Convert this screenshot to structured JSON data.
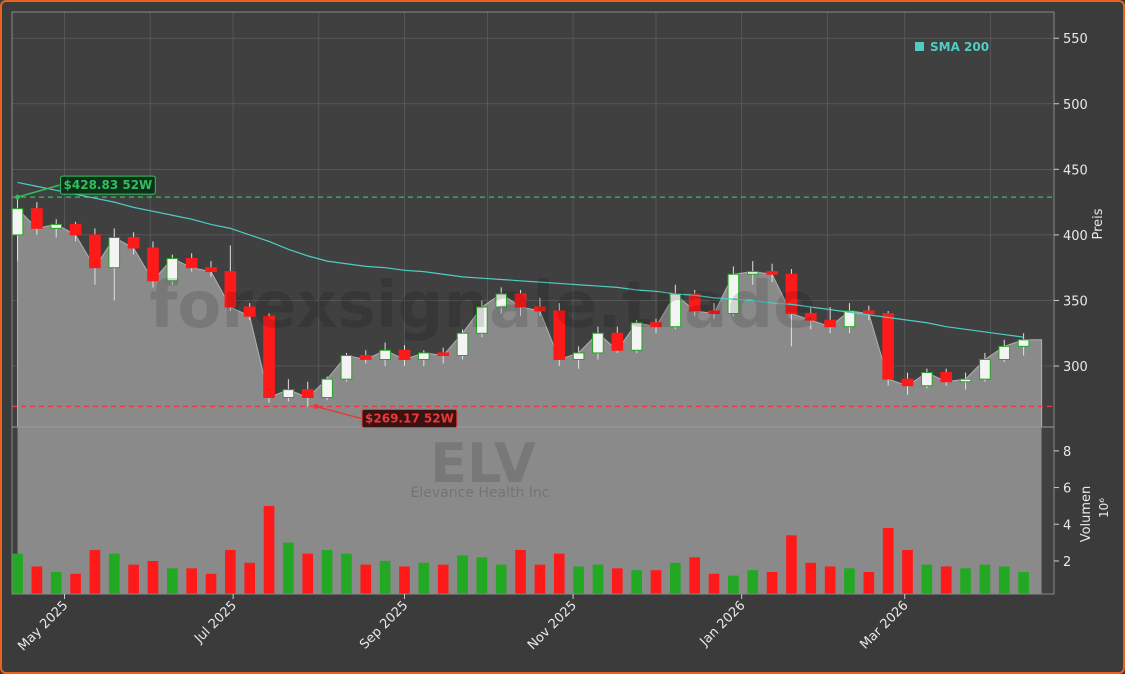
{
  "chart_data": {
    "type": "candlestick",
    "x": [
      "2025-04-14",
      "2025-04-21",
      "2025-04-28",
      "2025-05-05",
      "2025-05-12",
      "2025-05-19",
      "2025-05-26",
      "2025-06-02",
      "2025-06-09",
      "2025-06-16",
      "2025-06-23",
      "2025-06-30",
      "2025-07-07",
      "2025-07-14",
      "2025-07-21",
      "2025-07-28",
      "2025-08-04",
      "2025-08-11",
      "2025-08-18",
      "2025-08-25",
      "2025-09-01",
      "2025-09-08",
      "2025-09-15",
      "2025-09-22",
      "2025-09-29",
      "2025-10-06",
      "2025-10-13",
      "2025-10-20",
      "2025-10-27",
      "2025-11-03",
      "2025-11-10",
      "2025-11-17",
      "2025-11-24",
      "2025-12-01",
      "2025-12-08",
      "2025-12-15",
      "2025-12-22",
      "2025-12-29",
      "2026-01-05",
      "2026-01-12",
      "2026-01-19",
      "2026-01-26",
      "2026-02-02",
      "2026-02-09",
      "2026-02-16",
      "2026-02-23",
      "2026-03-02",
      "2026-03-09",
      "2026-03-16",
      "2026-03-23",
      "2026-03-30",
      "2026-04-06",
      "2026-04-13"
    ],
    "open": [
      400,
      420,
      405,
      408,
      400,
      375,
      398,
      390,
      365,
      382,
      375,
      372,
      345,
      338,
      276,
      282,
      276,
      290,
      308,
      305,
      312,
      305,
      310,
      308,
      325,
      345,
      355,
      345,
      342,
      305,
      310,
      325,
      312,
      333,
      330,
      355,
      342,
      340,
      370,
      372,
      370,
      340,
      335,
      330,
      342,
      340,
      290,
      285,
      295,
      288,
      290,
      305,
      315
    ],
    "high": [
      428.83,
      425,
      412,
      410,
      405,
      405,
      402,
      395,
      385,
      386,
      380,
      392,
      348,
      340,
      290,
      288,
      292,
      310,
      312,
      318,
      316,
      312,
      314,
      328,
      350,
      360,
      358,
      352,
      348,
      315,
      330,
      330,
      335,
      336,
      362,
      358,
      348,
      376,
      380,
      378,
      374,
      345,
      345,
      348,
      346,
      342,
      295,
      298,
      298,
      295,
      310,
      320,
      325
    ],
    "low": [
      380,
      400,
      398,
      395,
      362,
      350,
      385,
      360,
      362,
      372,
      368,
      342,
      335,
      272,
      273,
      269.17,
      274,
      288,
      302,
      300,
      300,
      300,
      302,
      305,
      322,
      340,
      338,
      338,
      300,
      298,
      305,
      310,
      310,
      325,
      328,
      338,
      336,
      338,
      362,
      364,
      315,
      328,
      325,
      325,
      335,
      285,
      278,
      283,
      285,
      282,
      288,
      303,
      308
    ],
    "close": [
      420,
      405,
      408,
      400,
      375,
      398,
      390,
      365,
      382,
      375,
      372,
      345,
      338,
      276,
      282,
      276,
      290,
      308,
      305,
      312,
      305,
      310,
      308,
      325,
      345,
      355,
      345,
      342,
      305,
      310,
      325,
      312,
      333,
      330,
      355,
      342,
      340,
      370,
      372,
      370,
      340,
      335,
      330,
      342,
      340,
      290,
      285,
      295,
      288,
      290,
      305,
      315,
      320
    ],
    "volume": [
      2.4,
      1.7,
      1.4,
      1.3,
      2.6,
      2.4,
      1.8,
      2.0,
      1.6,
      1.6,
      1.3,
      2.6,
      1.9,
      5.0,
      3.0,
      2.4,
      2.6,
      2.4,
      1.8,
      2.0,
      1.7,
      1.9,
      1.8,
      2.3,
      2.2,
      1.8,
      2.6,
      1.8,
      2.4,
      1.7,
      1.8,
      1.6,
      1.5,
      1.5,
      1.9,
      2.2,
      1.3,
      1.2,
      1.5,
      1.4,
      3.4,
      1.9,
      1.7,
      1.6,
      1.4,
      3.8,
      2.6,
      1.8,
      1.7,
      1.6,
      1.8,
      1.7,
      1.4
    ],
    "up_color": "#22a822",
    "down_color": "#ff1a1a",
    "series": [
      {
        "name": "SMA 200",
        "color": "#4ecdc4",
        "values": [
          440,
          437,
          434,
          431,
          428,
          425,
          421,
          418,
          415,
          412,
          408,
          405,
          400,
          395,
          389,
          384,
          380,
          378,
          376,
          375,
          373,
          372,
          370,
          368,
          367,
          366,
          365,
          364,
          363,
          362,
          361,
          360,
          358,
          357,
          355,
          354,
          352,
          351,
          350,
          348,
          347,
          345,
          343,
          341,
          339,
          337,
          335,
          333,
          330,
          328,
          326,
          324,
          322
        ]
      }
    ],
    "xlim": [
      "2025-04-12",
      "2026-04-24"
    ],
    "xticks": [
      {
        "value": "2025-05-01",
        "label": "May 2025"
      },
      {
        "value": "2025-07-01",
        "label": "Jul 2025"
      },
      {
        "value": "2025-09-01",
        "label": "Sep 2025"
      },
      {
        "value": "2025-11-01",
        "label": "Nov 2025"
      },
      {
        "value": "2026-01-01",
        "label": "Jan 2026"
      },
      {
        "value": "2026-03-01",
        "label": "Mar 2026"
      }
    ],
    "xgrid": [
      "2025-05-01",
      "2025-06-01",
      "2025-07-01",
      "2025-08-01",
      "2025-09-01",
      "2025-10-01",
      "2025-11-01",
      "2025-12-01",
      "2026-01-01",
      "2026-02-01",
      "2026-03-01",
      "2026-04-01"
    ],
    "ylim": [
      253.5,
      570
    ],
    "yticks": [
      300,
      350,
      400,
      450,
      500,
      550
    ],
    "y_label": "Preis",
    "volume_panel": {
      "ylim": [
        0.2,
        9.3
      ],
      "yticks": [
        2,
        4,
        6,
        8
      ],
      "y_label": "Volumen",
      "scale_label": "10⁶"
    },
    "annotations": [
      {
        "text": "$428.83 52W",
        "value": 428.83,
        "x": "2025-04-14",
        "color": "#2fbf5a"
      },
      {
        "text": "$269.17 52W",
        "value": 269.17,
        "x": "2025-07-31",
        "color": "#e83a3a"
      }
    ],
    "watermark": "forexsignale.trade",
    "symbol": "ELV",
    "company": "Elevance Health Inc",
    "grid": true
  }
}
